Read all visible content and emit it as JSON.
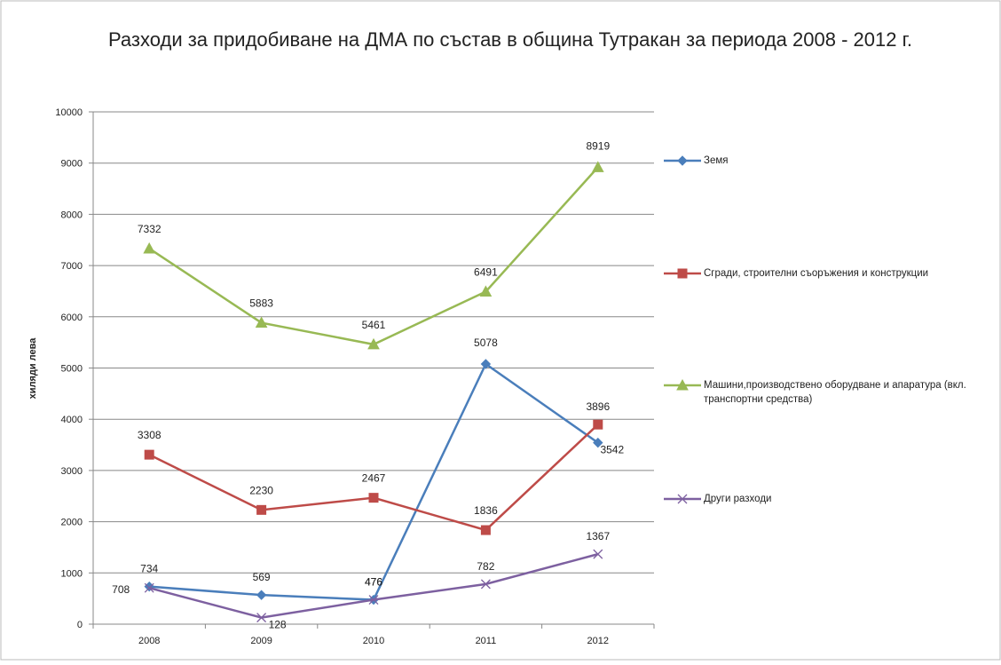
{
  "chart_data": {
    "type": "line",
    "title": "Разходи за придобиване на ДМА по състав в община Тутракан за периода 2008 - 2012 г.",
    "y_label": "хиляди лева",
    "categories": [
      "2008",
      "2009",
      "2010",
      "2011",
      "2012"
    ],
    "series": [
      {
        "name": "Земя",
        "color": "#4a7ebb",
        "marker": "diamond",
        "values": [
          734,
          569,
          476,
          5078,
          3542
        ]
      },
      {
        "name": "Сгради, строителни съоръжения и конструкции",
        "color": "#be4b48",
        "marker": "square",
        "values": [
          3308,
          2230,
          2467,
          1836,
          3896
        ]
      },
      {
        "name": "Машини,производствено оборудване и апаратура (вкл. транспортни средства)",
        "color": "#98b954",
        "marker": "triangle",
        "values": [
          7332,
          5883,
          5461,
          6491,
          8919
        ]
      },
      {
        "name": "Други разходи",
        "color": "#7d60a0",
        "marker": "x",
        "values": [
          708,
          128,
          476,
          782,
          1367
        ]
      }
    ],
    "ylim": [
      0,
      10000
    ],
    "yticks": [
      0,
      1000,
      2000,
      3000,
      4000,
      5000,
      6000,
      7000,
      8000,
      9000,
      10000
    ],
    "grid": true,
    "legend": "right"
  }
}
